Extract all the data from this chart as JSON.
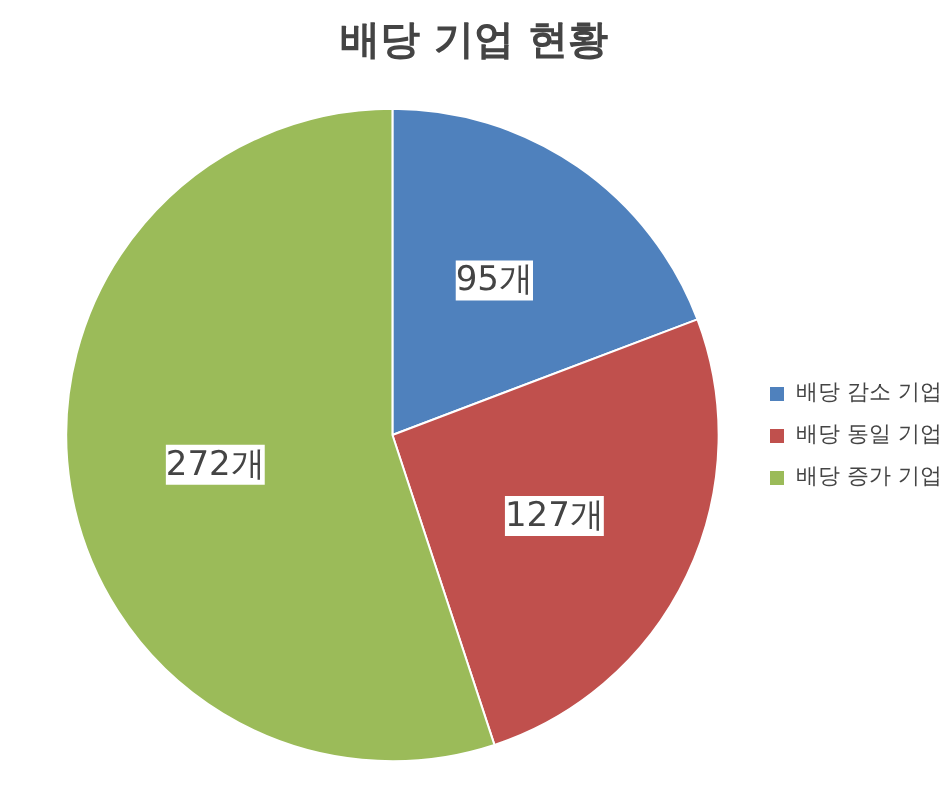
{
  "chart_data": {
    "type": "pie",
    "title": "배당 기업 현황",
    "categories": [
      "배당 감소 기업",
      "배당 동일 기업",
      "배당 증가 기업"
    ],
    "values": [
      95,
      127,
      272
    ],
    "colors": [
      "#4f81bd",
      "#c0504d",
      "#9bbb59"
    ],
    "value_labels": [
      "95개",
      "127개",
      "272개"
    ],
    "legend": "right"
  }
}
